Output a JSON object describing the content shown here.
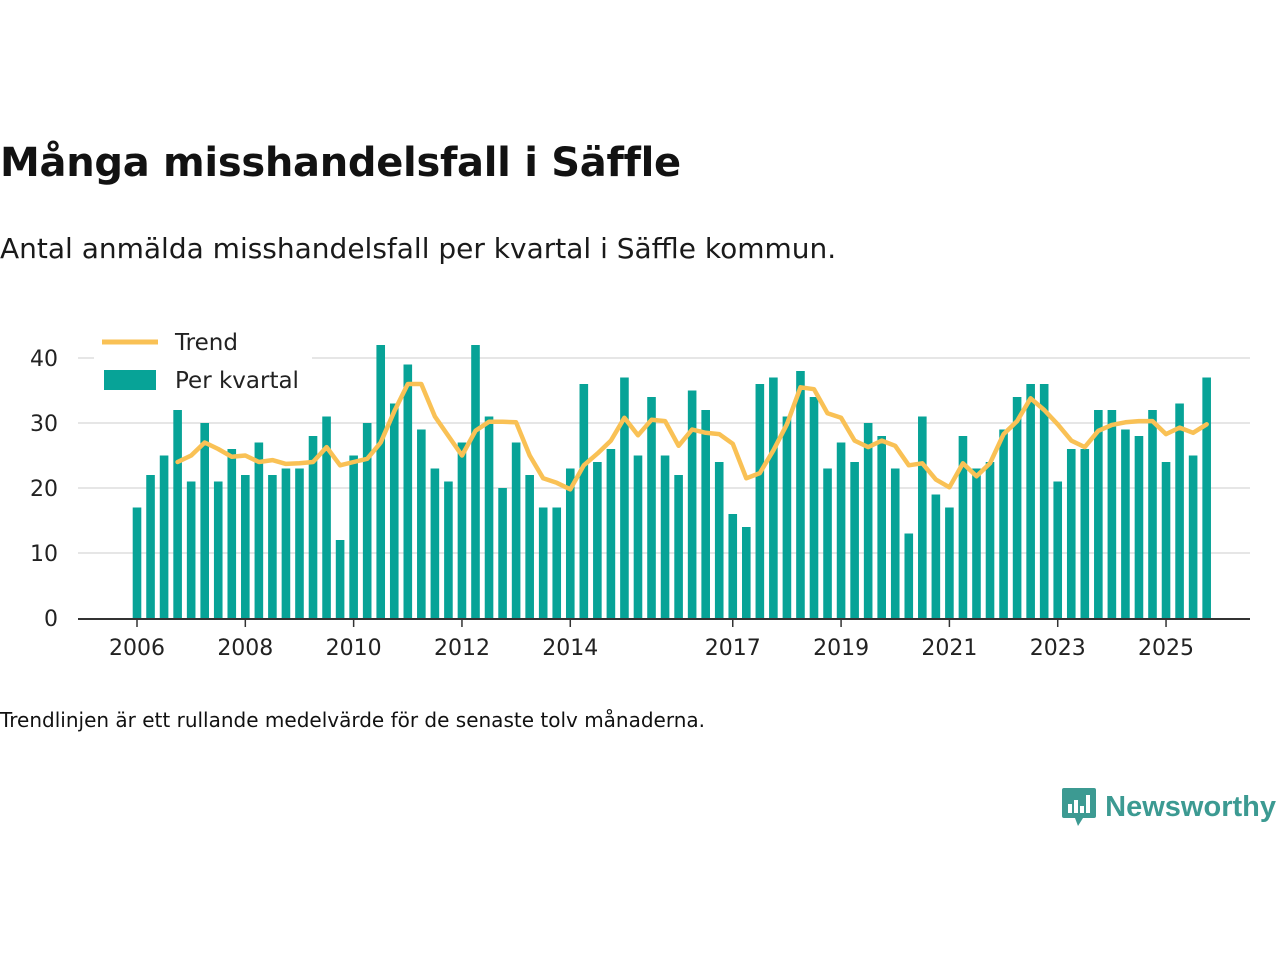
{
  "header": {
    "title": "Många misshandelsfall i Säffle",
    "subtitle": "Antal anmälda misshandelsfall per kvartal i Säffle kommun."
  },
  "footnote": "Trendlinjen är ett rullande medelvärde för de senaste tolv månaderna.",
  "brand": {
    "name": "Newsworthy",
    "icon": "newsworthy-logo-icon",
    "color": "#3c9a92"
  },
  "colors": {
    "bar": "#07a397",
    "trend": "#f9c155",
    "grid": "#dddddd",
    "axis": "#333333"
  },
  "chart_data": {
    "type": "bar",
    "title": "Många misshandelsfall i Säffle",
    "xlabel": "",
    "ylabel": "",
    "ylim": [
      0,
      40
    ],
    "yticks": [
      0,
      10,
      20,
      30,
      40
    ],
    "xticks": [
      {
        "label": "2006",
        "index": 0
      },
      {
        "label": "2008",
        "index": 8
      },
      {
        "label": "2010",
        "index": 16
      },
      {
        "label": "2012",
        "index": 24
      },
      {
        "label": "2014",
        "index": 32
      },
      {
        "label": "2017",
        "index": 44
      },
      {
        "label": "2019",
        "index": 52
      },
      {
        "label": "2021",
        "index": 60
      },
      {
        "label": "2023",
        "index": 68
      },
      {
        "label": "2025",
        "index": 76
      }
    ],
    "legend": {
      "position": "top-left",
      "entries": [
        "Trend",
        "Per kvartal"
      ]
    },
    "series": [
      {
        "name": "Per kvartal",
        "type": "bar",
        "values": [
          17,
          22,
          25,
          32,
          21,
          30,
          21,
          26,
          22,
          27,
          22,
          23,
          23,
          28,
          31,
          12,
          25,
          30,
          42,
          33,
          39,
          29,
          23,
          21,
          27,
          42,
          31,
          20,
          27,
          22,
          17,
          17,
          23,
          36,
          24,
          26,
          37,
          25,
          34,
          25,
          22,
          35,
          32,
          24,
          16,
          14,
          36,
          37,
          31,
          38,
          34,
          23,
          27,
          24,
          30,
          28,
          23,
          13,
          31,
          19,
          17,
          28,
          23,
          24,
          29,
          34,
          36,
          36,
          21,
          26,
          26,
          32,
          32,
          29,
          28,
          32,
          24,
          33,
          25,
          37
        ]
      },
      {
        "name": "Trend",
        "type": "line",
        "start_index": 3,
        "values": [
          24,
          25,
          27,
          26,
          24.8,
          25,
          24,
          24.3,
          23.7,
          23.8,
          24,
          26.3,
          23.5,
          24,
          24.5,
          27,
          31.8,
          36,
          36,
          31,
          28,
          25,
          28.8,
          30.2,
          30.2,
          30.1,
          25,
          21.5,
          20.8,
          19.8,
          23.5,
          25.3,
          27.3,
          30.8,
          28.1,
          30.5,
          30.3,
          26.5,
          29,
          28.5,
          28.3,
          26.8,
          21.5,
          22.3,
          25.8,
          29.8,
          35.5,
          35.2,
          31.5,
          30.8,
          27.3,
          26.3,
          27.3,
          26.5,
          23.5,
          23.8,
          21.3,
          20.1,
          23.8,
          21.8,
          23.8,
          28.3,
          30.3,
          33.8,
          32,
          29.8,
          27.3,
          26.3,
          28.8,
          29.7,
          30.1,
          30.3,
          30.3,
          28.3,
          29.3,
          28.5,
          29.8
        ]
      }
    ]
  }
}
